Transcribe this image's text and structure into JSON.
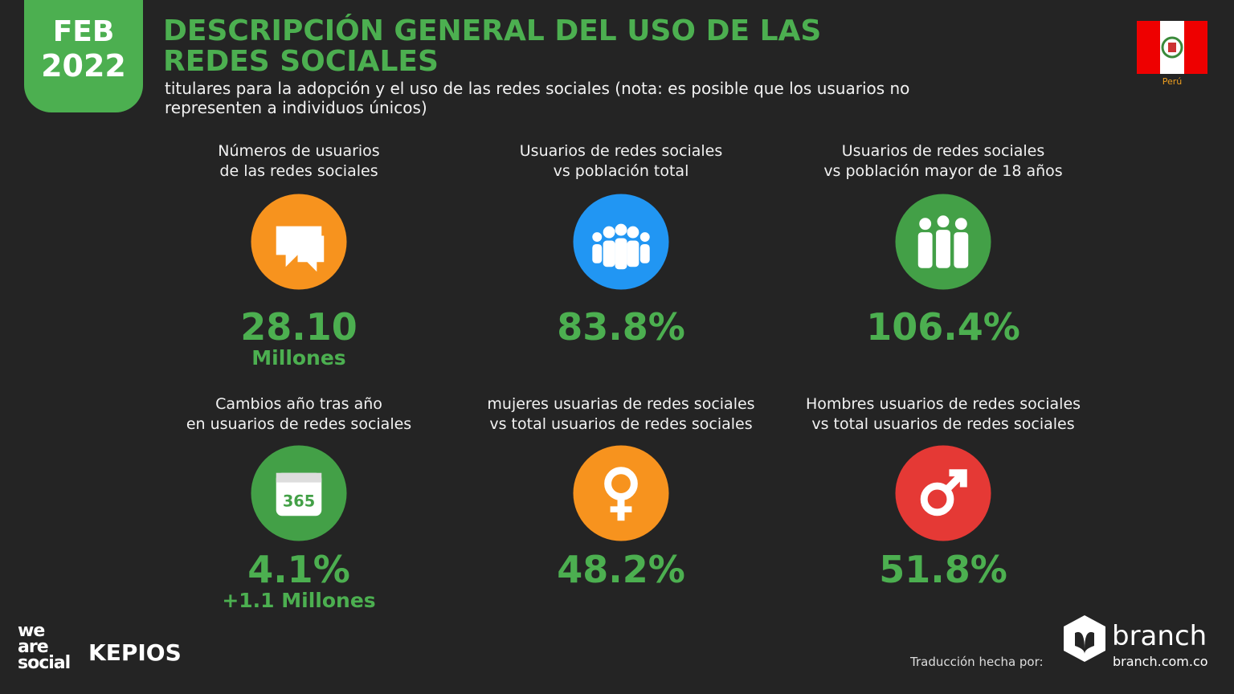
{
  "header": {
    "month": "FEB",
    "year": "2022",
    "title": [
      "DESCRIPCIÓN GENERAL DEL USO DE LAS",
      "REDES SOCIALES"
    ],
    "subtitle": [
      "titulares para la adopción y el uso de las redes sociales (nota: es posible que los usuarios no",
      "representen a individuos únicos)"
    ],
    "country": "Perú"
  },
  "stats": [
    {
      "label": [
        "Números de usuarios",
        "de las redes sociales"
      ],
      "value": "28.10",
      "sub": "Millones"
    },
    {
      "label": [
        "Usuarios de redes sociales",
        "vs población total"
      ],
      "value": "83.8%"
    },
    {
      "label": [
        "Usuarios de redes sociales",
        "vs población mayor de 18 años"
      ],
      "value": "106.4%"
    },
    {
      "label": [
        "Cambios año tras año",
        "en usuarios de redes sociales"
      ],
      "value": "4.1%",
      "sub": "+1.1 Millones"
    },
    {
      "label": [
        "mujeres usuarias de redes sociales",
        "vs total usuarios de redes sociales"
      ],
      "value": "48.2%"
    },
    {
      "label": [
        "Hombres  usuarios de redes sociales",
        "vs total usuarios de redes sociales"
      ],
      "value": "51.8%"
    }
  ],
  "footer": {
    "brand1": [
      "we",
      "are",
      "social"
    ],
    "brand2": "KEPIOS",
    "credit": "Traducción hecha por:",
    "brand3": "branch",
    "url": "branch.com.co"
  }
}
